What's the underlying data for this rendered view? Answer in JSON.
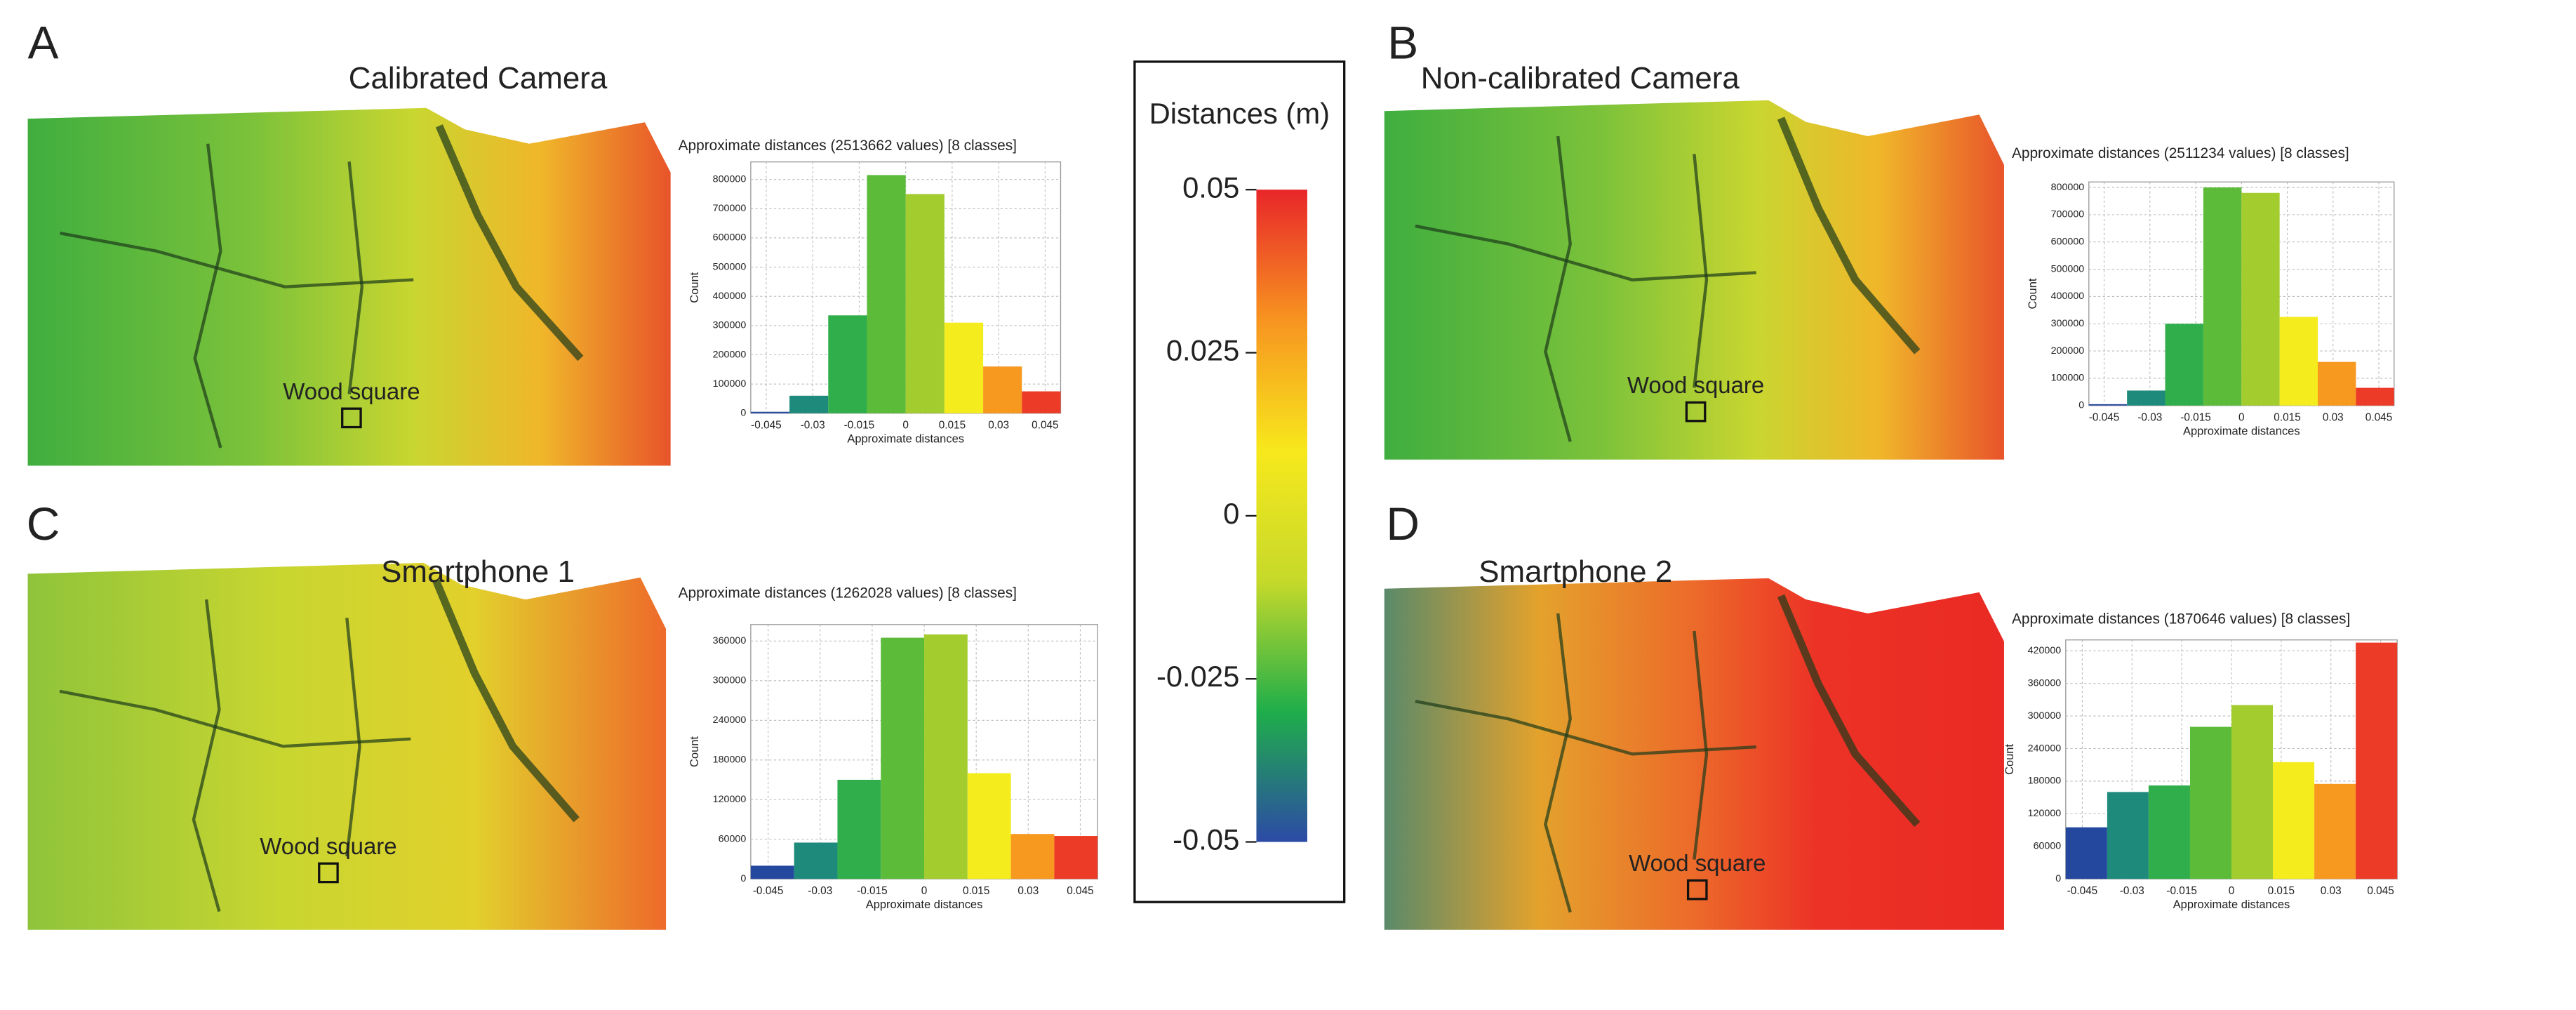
{
  "chart_data": [
    {
      "type": "histogram",
      "panel_label": "A",
      "panel_title": "Calibrated Camera",
      "annotation": "Wood square",
      "title": "Approximate distances (2513662 values) [8 classes]",
      "xlabel": "Approximate distances",
      "ylabel": "Count",
      "bins": [
        -0.05,
        -0.0375,
        -0.025,
        -0.0125,
        0,
        0.0125,
        0.025,
        0.0375,
        0.05
      ],
      "values": [
        5000,
        60000,
        335000,
        815000,
        750000,
        310000,
        160000,
        75000
      ],
      "colors": [
        "#24489e",
        "#1e8a7c",
        "#2fae4b",
        "#5dbb3a",
        "#a3cc2f",
        "#f4ec1c",
        "#f7981f",
        "#ec3b26"
      ],
      "xlim": [
        -0.05,
        0.05
      ],
      "xticks": [
        -0.045,
        -0.03,
        -0.015,
        0,
        0.015,
        0.03,
        0.045
      ],
      "ylim": [
        0,
        860000
      ],
      "yticks": [
        0,
        100000,
        200000,
        300000,
        400000,
        500000,
        600000,
        700000,
        800000
      ],
      "grid": true
    },
    {
      "type": "histogram",
      "panel_label": "B",
      "panel_title": "Non-calibrated Camera",
      "annotation": "Wood square",
      "title": "Approximate distances (2511234 values) [8 classes]",
      "xlabel": "Approximate distances",
      "ylabel": "Count",
      "bins": [
        -0.05,
        -0.0375,
        -0.025,
        -0.0125,
        0,
        0.0125,
        0.025,
        0.0375,
        0.05
      ],
      "values": [
        5000,
        55000,
        300000,
        800000,
        780000,
        325000,
        160000,
        65000
      ],
      "colors": [
        "#24489e",
        "#1e8a7c",
        "#2fae4b",
        "#5dbb3a",
        "#a3cc2f",
        "#f4ec1c",
        "#f7981f",
        "#ec3b26"
      ],
      "xlim": [
        -0.05,
        0.05
      ],
      "xticks": [
        -0.045,
        -0.03,
        -0.015,
        0,
        0.015,
        0.03,
        0.045
      ],
      "ylim": [
        0,
        820000
      ],
      "yticks": [
        0,
        100000,
        200000,
        300000,
        400000,
        500000,
        600000,
        700000,
        800000
      ],
      "grid": true
    },
    {
      "type": "histogram",
      "panel_label": "C",
      "panel_title": "Smartphone 1",
      "annotation": "Wood square",
      "title": "Approximate distances (1262028 values) [8 classes]",
      "xlabel": "Approximate distances",
      "ylabel": "Count",
      "bins": [
        -0.05,
        -0.0375,
        -0.025,
        -0.0125,
        0,
        0.0125,
        0.025,
        0.0375,
        0.05
      ],
      "values": [
        20000,
        55000,
        150000,
        365000,
        370000,
        160000,
        68000,
        65000
      ],
      "colors": [
        "#24489e",
        "#1e8a7c",
        "#2fae4b",
        "#5dbb3a",
        "#a3cc2f",
        "#f4ec1c",
        "#f7981f",
        "#ec3b26"
      ],
      "xlim": [
        -0.05,
        0.05
      ],
      "xticks": [
        -0.045,
        -0.03,
        -0.015,
        0,
        0.015,
        0.03,
        0.045
      ],
      "ylim": [
        0,
        385000
      ],
      "yticks": [
        0,
        60000,
        120000,
        180000,
        240000,
        300000,
        360000
      ],
      "grid": true
    },
    {
      "type": "histogram",
      "panel_label": "D",
      "panel_title": "Smartphone 2",
      "annotation": "Wood square",
      "title": "Approximate distances (1870646 values) [8 classes]",
      "xlabel": "Approximate distances",
      "ylabel": "Count",
      "bins": [
        -0.05,
        -0.0375,
        -0.025,
        -0.0125,
        0,
        0.0125,
        0.025,
        0.0375,
        0.05
      ],
      "values": [
        95000,
        160000,
        172000,
        280000,
        320000,
        215000,
        175000,
        435000
      ],
      "colors": [
        "#24489e",
        "#1e8a7c",
        "#2fae4b",
        "#5dbb3a",
        "#a3cc2f",
        "#f4ec1c",
        "#f7981f",
        "#ec3b26"
      ],
      "xlim": [
        -0.05,
        0.05
      ],
      "xticks": [
        -0.045,
        -0.03,
        -0.015,
        0,
        0.015,
        0.03,
        0.045
      ],
      "ylim": [
        0,
        440000
      ],
      "yticks": [
        0,
        60000,
        120000,
        180000,
        240000,
        300000,
        360000,
        420000
      ],
      "grid": true
    }
  ],
  "colorbar": {
    "title": "Distances (m)",
    "lim": [
      -0.05,
      0.05
    ],
    "ticks": [
      0.05,
      0.025,
      0,
      -0.025,
      -0.05
    ],
    "colors": [
      "#2c4aa6",
      "#1fae4a",
      "#c6d92a",
      "#f7e81c",
      "#f79420",
      "#e8262a"
    ]
  }
}
